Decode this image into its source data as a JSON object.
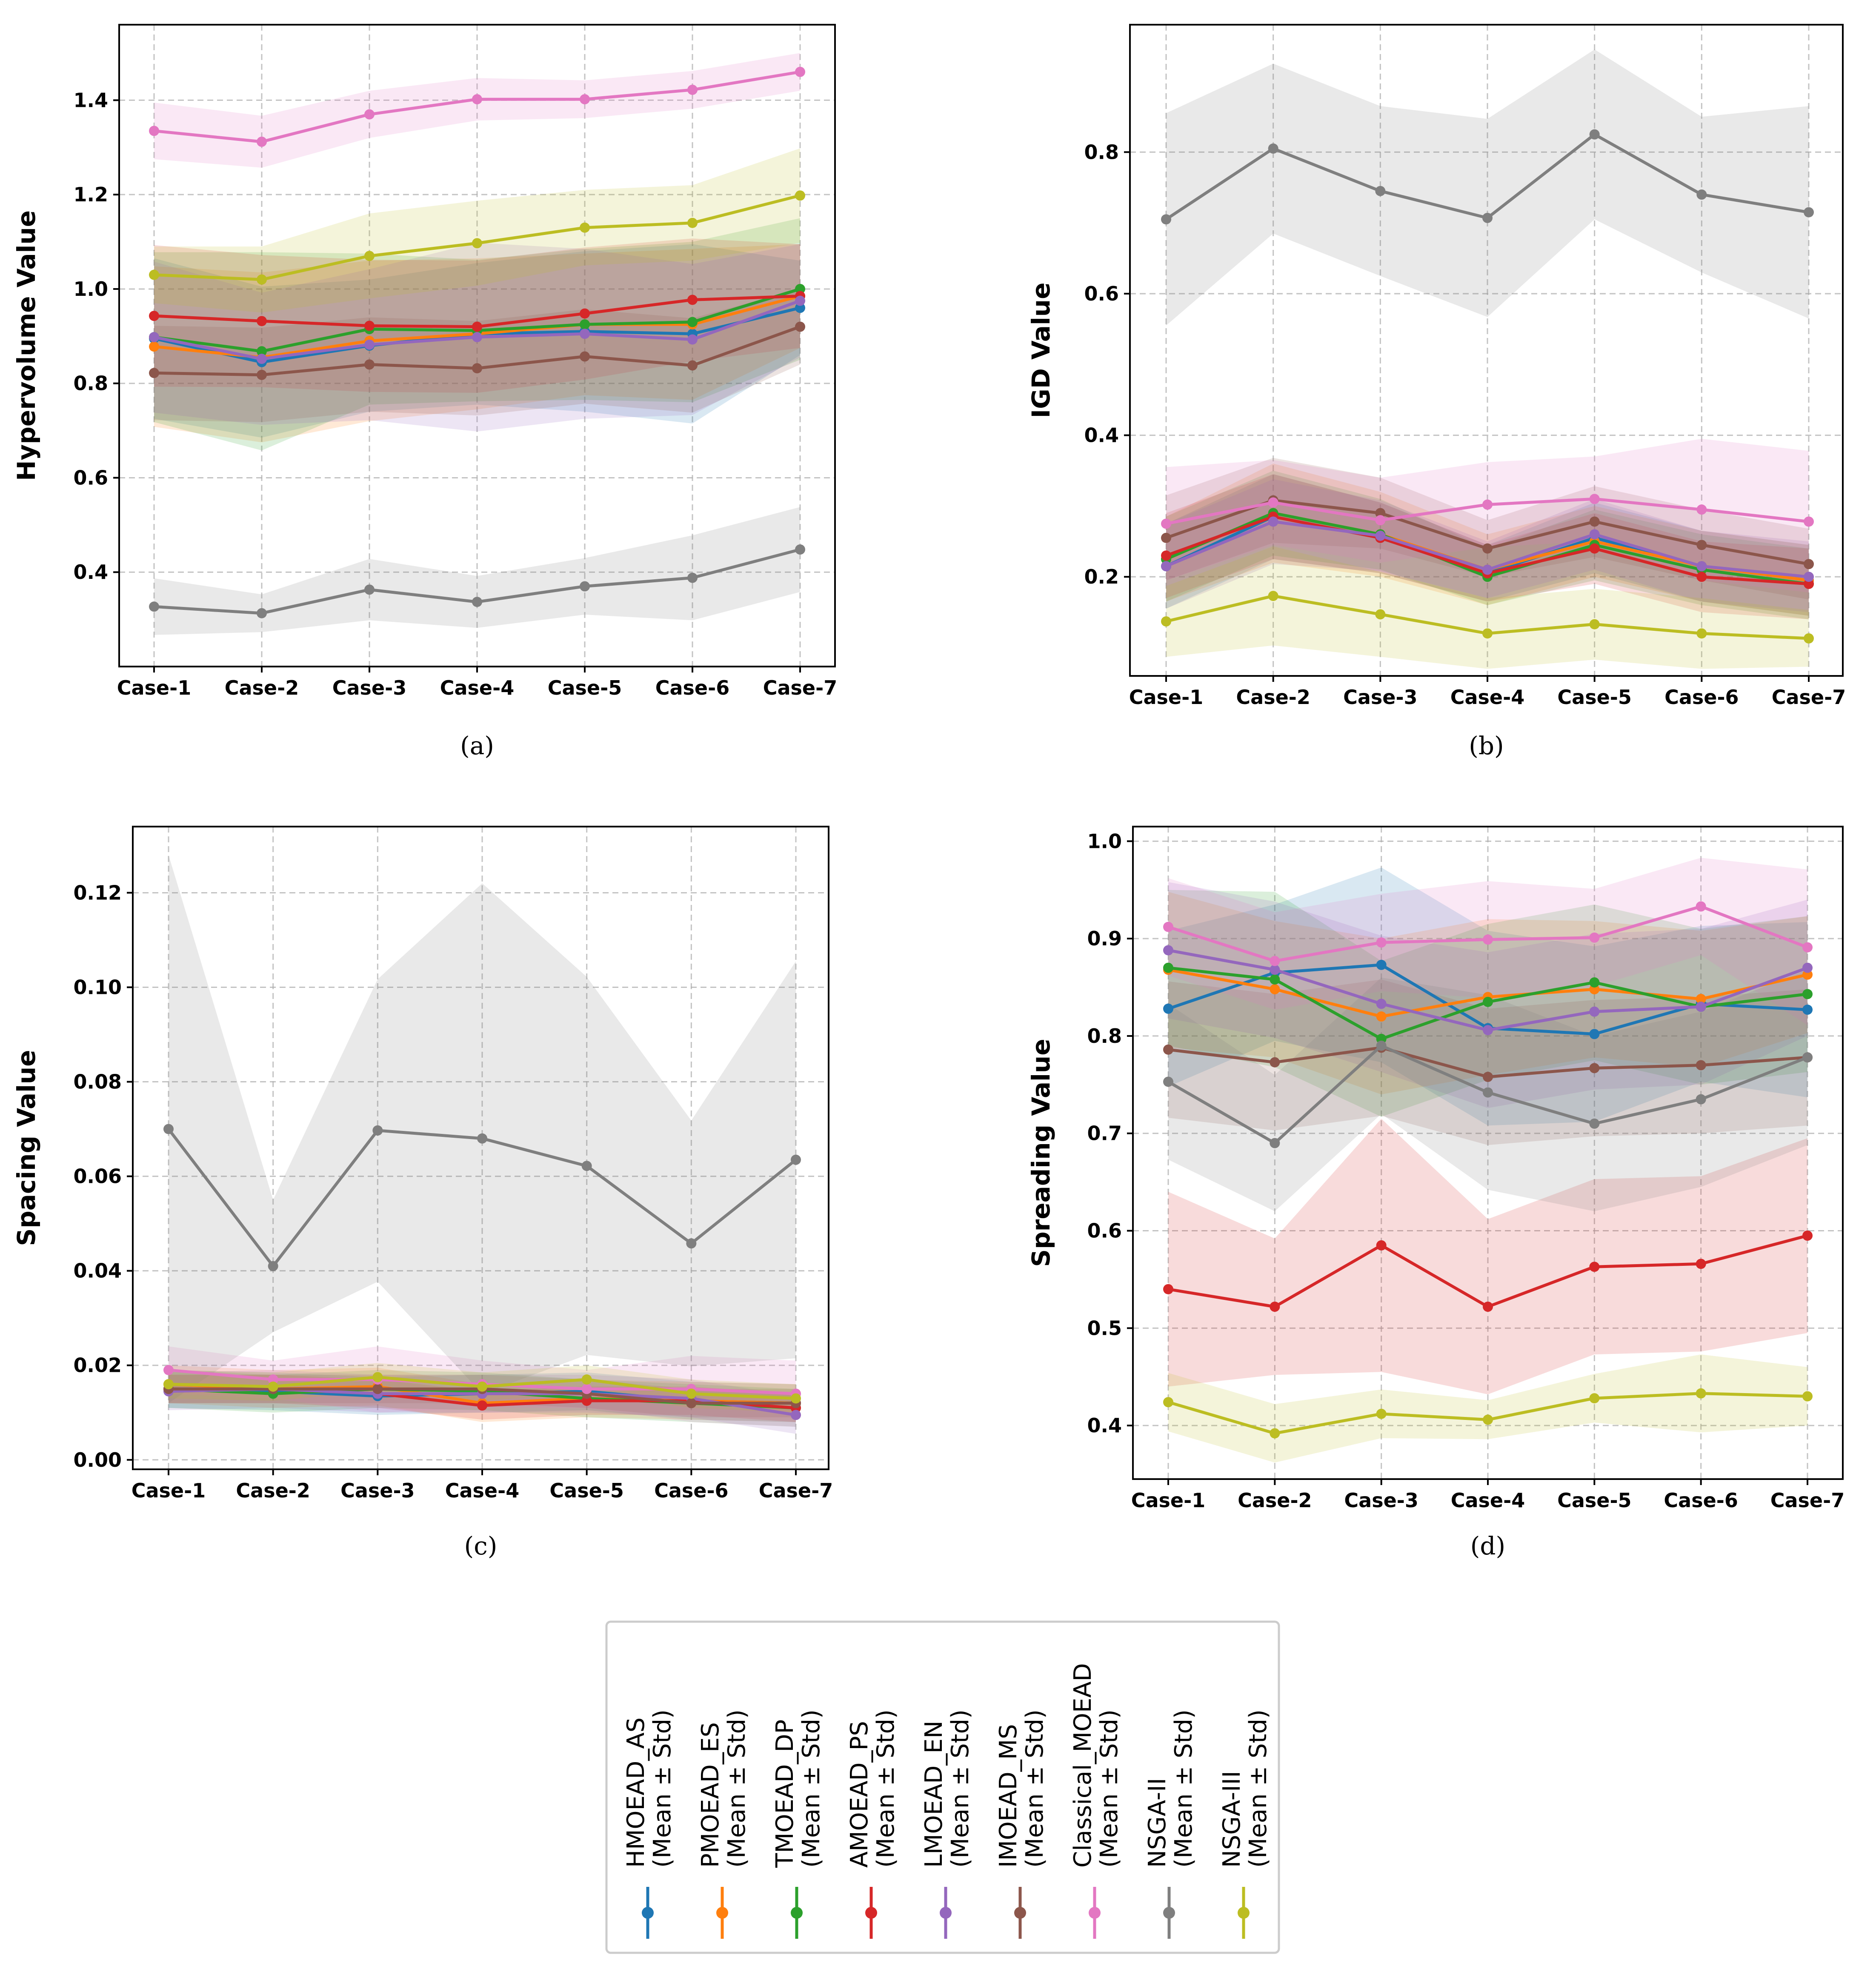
{
  "chart_data": [
    {
      "type": "line",
      "id": "a",
      "caption": "(a)",
      "ylabel": "Hypervolume Value",
      "xlabel": "",
      "categories": [
        "Case-1",
        "Case-2",
        "Case-3",
        "Case-4",
        "Case-5",
        "Case-6",
        "Case-7"
      ],
      "ylim": [
        0.2,
        1.56
      ],
      "yticks": [
        0.4,
        0.6,
        0.8,
        1.0,
        1.2,
        1.4
      ],
      "ytick_labels": [
        "0.4",
        "0.6",
        "0.8",
        "1.0",
        "1.2",
        "1.4"
      ],
      "grid": true,
      "series": [
        {
          "name": "HMOEAD_AS",
          "mean": [
            0.895,
            0.845,
            0.88,
            0.905,
            0.91,
            0.905,
            0.96
          ],
          "std": [
            0.17,
            0.16,
            0.14,
            0.15,
            0.17,
            0.19,
            0.1
          ]
        },
        {
          "name": "PMOEAD_ES",
          "mean": [
            0.878,
            0.855,
            0.89,
            0.905,
            0.925,
            0.925,
            0.985
          ],
          "std": [
            0.17,
            0.18,
            0.17,
            0.16,
            0.15,
            0.16,
            0.11
          ]
        },
        {
          "name": "TMOEAD_DP",
          "mean": [
            0.898,
            0.868,
            0.915,
            0.912,
            0.925,
            0.93,
            1.0
          ],
          "std": [
            0.18,
            0.21,
            0.16,
            0.15,
            0.16,
            0.17,
            0.15
          ]
        },
        {
          "name": "AMOEAD_PS",
          "mean": [
            0.943,
            0.932,
            0.922,
            0.92,
            0.948,
            0.977,
            0.985
          ],
          "std": [
            0.15,
            0.14,
            0.14,
            0.14,
            0.14,
            0.13,
            0.11
          ]
        },
        {
          "name": "LMOEAD_EN",
          "mean": [
            0.898,
            0.852,
            0.882,
            0.898,
            0.905,
            0.893,
            0.975
          ],
          "std": [
            0.16,
            0.14,
            0.16,
            0.2,
            0.18,
            0.16,
            0.12
          ]
        },
        {
          "name": "IMOEAD_MS",
          "mean": [
            0.822,
            0.818,
            0.84,
            0.832,
            0.857,
            0.838,
            0.92
          ],
          "std": [
            0.1,
            0.1,
            0.1,
            0.1,
            0.1,
            0.1,
            0.08
          ]
        },
        {
          "name": "Classical_MOEAD",
          "mean": [
            1.335,
            1.312,
            1.37,
            1.402,
            1.402,
            1.422,
            1.46
          ],
          "std": [
            0.06,
            0.055,
            0.05,
            0.045,
            0.04,
            0.04,
            0.04
          ]
        },
        {
          "name": "NSGA-II",
          "mean": [
            0.327,
            0.313,
            0.363,
            0.337,
            0.37,
            0.388,
            0.448
          ],
          "std": [
            0.06,
            0.04,
            0.065,
            0.055,
            0.06,
            0.09,
            0.09
          ]
        },
        {
          "name": "NSGA-III",
          "mean": [
            1.03,
            1.02,
            1.07,
            1.097,
            1.13,
            1.14,
            1.198
          ],
          "std": [
            0.06,
            0.07,
            0.09,
            0.09,
            0.08,
            0.08,
            0.1
          ]
        }
      ]
    },
    {
      "type": "line",
      "id": "b",
      "caption": "(b)",
      "ylabel": "IGD Value",
      "xlabel": "",
      "categories": [
        "Case-1",
        "Case-2",
        "Case-3",
        "Case-4",
        "Case-5",
        "Case-6",
        "Case-7"
      ],
      "ylim": [
        0.06,
        0.98
      ],
      "yticks": [
        0.2,
        0.4,
        0.6,
        0.8
      ],
      "ytick_labels": [
        "0.2",
        "0.4",
        "0.6",
        "0.8"
      ],
      "grid": true,
      "series": [
        {
          "name": "HMOEAD_AS",
          "mean": [
            0.215,
            0.285,
            0.255,
            0.205,
            0.255,
            0.215,
            0.195
          ],
          "std": [
            0.06,
            0.06,
            0.05,
            0.04,
            0.05,
            0.05,
            0.05
          ]
        },
        {
          "name": "PMOEAD_ES",
          "mean": [
            0.225,
            0.29,
            0.26,
            0.21,
            0.25,
            0.215,
            0.195
          ],
          "std": [
            0.06,
            0.07,
            0.06,
            0.05,
            0.05,
            0.05,
            0.05
          ]
        },
        {
          "name": "TMOEAD_DP",
          "mean": [
            0.225,
            0.29,
            0.26,
            0.2,
            0.245,
            0.21,
            0.19
          ],
          "std": [
            0.06,
            0.06,
            0.05,
            0.04,
            0.05,
            0.05,
            0.05
          ]
        },
        {
          "name": "AMOEAD_PS",
          "mean": [
            0.23,
            0.285,
            0.255,
            0.205,
            0.24,
            0.2,
            0.19
          ],
          "std": [
            0.06,
            0.06,
            0.05,
            0.04,
            0.05,
            0.05,
            0.05
          ]
        },
        {
          "name": "LMOEAD_EN",
          "mean": [
            0.215,
            0.278,
            0.258,
            0.21,
            0.26,
            0.215,
            0.2
          ],
          "std": [
            0.06,
            0.06,
            0.05,
            0.04,
            0.05,
            0.05,
            0.05
          ]
        },
        {
          "name": "IMOEAD_MS",
          "mean": [
            0.255,
            0.308,
            0.29,
            0.24,
            0.278,
            0.245,
            0.218
          ],
          "std": [
            0.06,
            0.06,
            0.05,
            0.04,
            0.05,
            0.05,
            0.05
          ]
        },
        {
          "name": "Classical_MOEAD",
          "mean": [
            0.275,
            0.305,
            0.28,
            0.302,
            0.31,
            0.295,
            0.278
          ],
          "std": [
            0.08,
            0.06,
            0.06,
            0.06,
            0.06,
            0.1,
            0.1
          ]
        },
        {
          "name": "NSGA-II",
          "mean": [
            0.705,
            0.805,
            0.745,
            0.707,
            0.825,
            0.74,
            0.715
          ],
          "std": [
            0.15,
            0.12,
            0.12,
            0.14,
            0.12,
            0.11,
            0.15
          ]
        },
        {
          "name": "NSGA-III",
          "mean": [
            0.137,
            0.173,
            0.147,
            0.12,
            0.133,
            0.12,
            0.113
          ],
          "std": [
            0.05,
            0.07,
            0.06,
            0.05,
            0.05,
            0.05,
            0.04
          ]
        }
      ]
    },
    {
      "type": "line",
      "id": "c",
      "caption": "(c)",
      "ylabel": "Spacing Value",
      "xlabel": "",
      "categories": [
        "Case-1",
        "Case-2",
        "Case-3",
        "Case-4",
        "Case-5",
        "Case-6",
        "Case-7"
      ],
      "ylim": [
        -0.002,
        0.134
      ],
      "yticks": [
        0.0,
        0.02,
        0.04,
        0.06,
        0.08,
        0.1,
        0.12
      ],
      "ytick_labels": [
        "0.00",
        "0.02",
        "0.04",
        "0.06",
        "0.08",
        "0.10",
        "0.12"
      ],
      "grid": true,
      "series": [
        {
          "name": "HMOEAD_AS",
          "mean": [
            0.015,
            0.0145,
            0.0135,
            0.014,
            0.0145,
            0.0125,
            0.012
          ],
          "std": [
            0.004,
            0.004,
            0.004,
            0.004,
            0.004,
            0.004,
            0.004
          ]
        },
        {
          "name": "PMOEAD_ES",
          "mean": [
            0.016,
            0.015,
            0.0155,
            0.012,
            0.013,
            0.0125,
            0.012
          ],
          "std": [
            0.004,
            0.004,
            0.004,
            0.004,
            0.004,
            0.004,
            0.004
          ]
        },
        {
          "name": "TMOEAD_DP",
          "mean": [
            0.015,
            0.014,
            0.015,
            0.0145,
            0.013,
            0.012,
            0.011
          ],
          "std": [
            0.004,
            0.004,
            0.004,
            0.004,
            0.004,
            0.004,
            0.004
          ]
        },
        {
          "name": "AMOEAD_PS",
          "mean": [
            0.015,
            0.015,
            0.014,
            0.0115,
            0.0125,
            0.0125,
            0.011
          ],
          "std": [
            0.003,
            0.003,
            0.003,
            0.003,
            0.003,
            0.003,
            0.003
          ]
        },
        {
          "name": "LMOEAD_EN",
          "mean": [
            0.0145,
            0.015,
            0.014,
            0.014,
            0.014,
            0.013,
            0.0095
          ],
          "std": [
            0.004,
            0.004,
            0.004,
            0.004,
            0.004,
            0.004,
            0.004
          ]
        },
        {
          "name": "IMOEAD_MS",
          "mean": [
            0.015,
            0.015,
            0.015,
            0.015,
            0.014,
            0.012,
            0.012
          ],
          "std": [
            0.003,
            0.003,
            0.003,
            0.003,
            0.003,
            0.003,
            0.003
          ]
        },
        {
          "name": "Classical_MOEAD",
          "mean": [
            0.019,
            0.017,
            0.017,
            0.016,
            0.015,
            0.015,
            0.014
          ],
          "std": [
            0.005,
            0.004,
            0.007,
            0.005,
            0.004,
            0.007,
            0.007
          ]
        },
        {
          "name": "NSGA-II",
          "mean": [
            0.07,
            0.041,
            0.0697,
            0.068,
            0.0622,
            0.0458,
            0.0635
          ],
          "std": [
            0.058,
            0.014,
            0.032,
            0.054,
            0.04,
            0.026,
            0.042
          ]
        },
        {
          "name": "NSGA-III",
          "mean": [
            0.016,
            0.0155,
            0.0175,
            0.0155,
            0.017,
            0.014,
            0.013
          ],
          "std": [
            0.003,
            0.003,
            0.003,
            0.003,
            0.003,
            0.003,
            0.003
          ]
        }
      ]
    },
    {
      "type": "line",
      "id": "d",
      "caption": "(d)",
      "ylabel": "Spreading Value",
      "xlabel": "",
      "categories": [
        "Case-1",
        "Case-2",
        "Case-3",
        "Case-4",
        "Case-5",
        "Case-6",
        "Case-7"
      ],
      "ylim": [
        0.345,
        1.015
      ],
      "yticks": [
        0.4,
        0.5,
        0.6,
        0.7,
        0.8,
        0.9,
        1.0
      ],
      "ytick_labels": [
        "0.4",
        "0.5",
        "0.6",
        "0.7",
        "0.8",
        "0.9",
        "1.0"
      ],
      "grid": true,
      "series": [
        {
          "name": "HMOEAD_AS",
          "mean": [
            0.828,
            0.865,
            0.873,
            0.808,
            0.802,
            0.833,
            0.827
          ],
          "std": [
            0.08,
            0.07,
            0.1,
            0.1,
            0.09,
            0.08,
            0.09
          ]
        },
        {
          "name": "PMOEAD_ES",
          "mean": [
            0.868,
            0.848,
            0.82,
            0.84,
            0.848,
            0.838,
            0.863
          ],
          "std": [
            0.08,
            0.07,
            0.08,
            0.08,
            0.07,
            0.07,
            0.06
          ]
        },
        {
          "name": "TMOEAD_DP",
          "mean": [
            0.87,
            0.858,
            0.797,
            0.835,
            0.855,
            0.83,
            0.843
          ],
          "std": [
            0.08,
            0.09,
            0.08,
            0.08,
            0.08,
            0.08,
            0.08
          ]
        },
        {
          "name": "AMOEAD_PS",
          "mean": [
            0.54,
            0.522,
            0.585,
            0.522,
            0.563,
            0.566,
            0.595
          ],
          "std": [
            0.1,
            0.07,
            0.13,
            0.09,
            0.09,
            0.09,
            0.1
          ]
        },
        {
          "name": "LMOEAD_EN",
          "mean": [
            0.888,
            0.868,
            0.833,
            0.806,
            0.825,
            0.83,
            0.87
          ],
          "std": [
            0.07,
            0.07,
            0.07,
            0.08,
            0.08,
            0.08,
            0.07
          ]
        },
        {
          "name": "IMOEAD_MS",
          "mean": [
            0.786,
            0.773,
            0.788,
            0.758,
            0.767,
            0.77,
            0.778
          ],
          "std": [
            0.07,
            0.07,
            0.07,
            0.07,
            0.07,
            0.07,
            0.07
          ]
        },
        {
          "name": "Classical_MOEAD",
          "mean": [
            0.912,
            0.877,
            0.896,
            0.899,
            0.901,
            0.933,
            0.891
          ],
          "std": [
            0.05,
            0.05,
            0.05,
            0.06,
            0.05,
            0.05,
            0.08
          ]
        },
        {
          "name": "NSGA-II",
          "mean": [
            0.753,
            0.69,
            0.79,
            0.742,
            0.71,
            0.735,
            0.778
          ],
          "std": [
            0.08,
            0.07,
            0.07,
            0.1,
            0.09,
            0.09,
            0.09
          ]
        },
        {
          "name": "NSGA-III",
          "mean": [
            0.424,
            0.392,
            0.412,
            0.406,
            0.428,
            0.433,
            0.43
          ],
          "std": [
            0.03,
            0.03,
            0.025,
            0.02,
            0.025,
            0.04,
            0.03
          ]
        }
      ]
    }
  ],
  "legend": {
    "suffix": "(Mean ± Std)",
    "entries": [
      {
        "name": "HMOEAD_AS",
        "color": "#1f77b4"
      },
      {
        "name": "PMOEAD_ES",
        "color": "#ff7f0e"
      },
      {
        "name": "TMOEAD_DP",
        "color": "#2ca02c"
      },
      {
        "name": "AMOEAD_PS",
        "color": "#d62728"
      },
      {
        "name": "LMOEAD_EN",
        "color": "#9467bd"
      },
      {
        "name": "IMOEAD_MS",
        "color": "#8c564b"
      },
      {
        "name": "Classical_MOEAD",
        "color": "#e377c2"
      },
      {
        "name": "NSGA-II",
        "color": "#7f7f7f"
      },
      {
        "name": "NSGA-III",
        "color": "#bcbd22"
      }
    ]
  }
}
